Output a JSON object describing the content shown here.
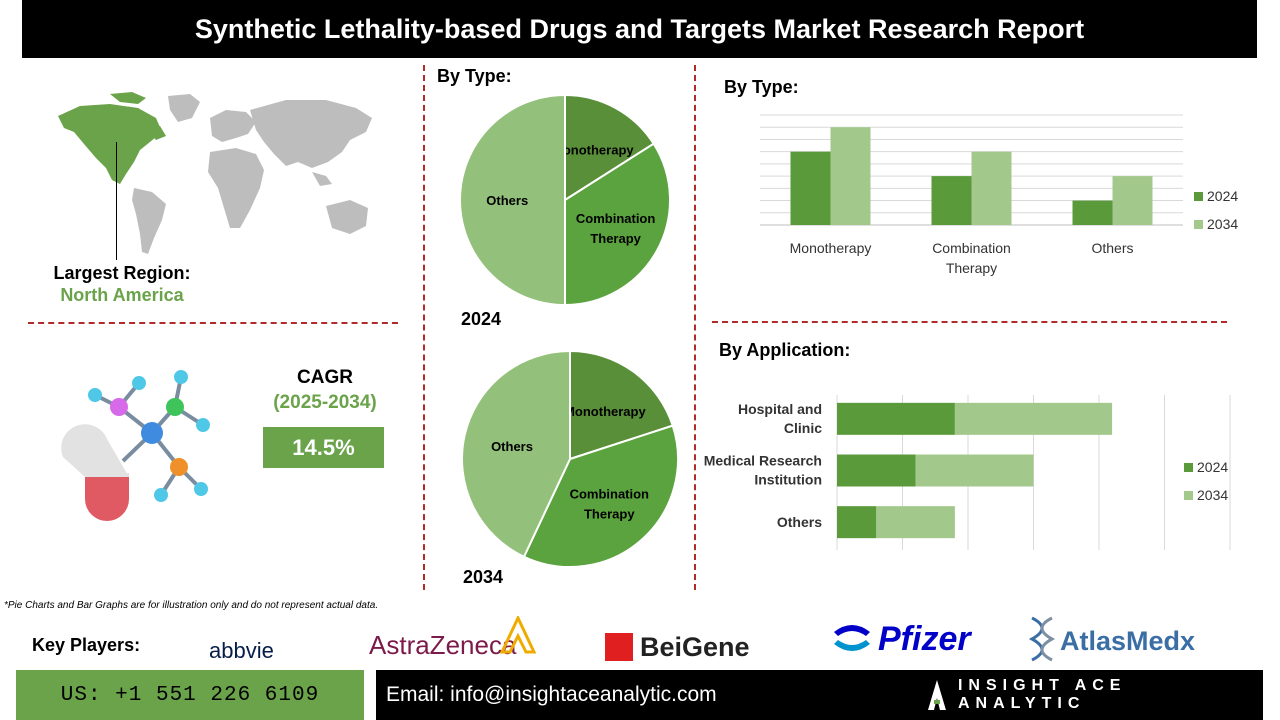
{
  "header": {
    "title": "Synthetic Lethality-based Drugs and Targets Market Research Report"
  },
  "region": {
    "label": "Largest Region:",
    "value": "North America"
  },
  "cagr": {
    "label": "CAGR",
    "period": "(2025-2034)",
    "value": "14.5%"
  },
  "pie_section": {
    "title": "By Type:"
  },
  "bar_type_section": {
    "title": "By  Type:"
  },
  "bar_app_section": {
    "title": "By Application:"
  },
  "footnote": "*Pie Charts and Bar Graphs are for illustration only and do not represent actual data.",
  "key_players": {
    "label": "Key Players:",
    "logos": [
      "abbvie",
      "AstraZeneca",
      "BeiGene",
      "Pfizer",
      "AtlasMedx"
    ]
  },
  "contact": {
    "phone": "US: +1 551 226 6109",
    "email": "Email: info@insightaceanalytic.com",
    "brand": "INSIGHT ACE ANALYTIC"
  },
  "colors": {
    "dark_green": "#5a9a3a",
    "mid_green": "#6aa34a",
    "light_green": "#a3c88c",
    "pie_light": "#93c07a",
    "dash_red": "#b22a2a"
  },
  "icons": [
    "world-map-icon",
    "molecule-capsule-icon",
    "brand-logo-icon"
  ],
  "chart_data": [
    {
      "type": "pie",
      "year_label": "2024",
      "slices": [
        {
          "label": "Monotherapy",
          "value": 16
        },
        {
          "label": "Combination Therapy",
          "value": 34
        },
        {
          "label": "Others",
          "value": 50
        }
      ]
    },
    {
      "type": "pie",
      "year_label": "2034",
      "slices": [
        {
          "label": "Monotherapy",
          "value": 20
        },
        {
          "label": "Combination Therapy",
          "value": 37
        },
        {
          "label": "Others",
          "value": 43
        }
      ]
    },
    {
      "type": "bar",
      "categories": [
        "Monotherapy",
        "Combination Therapy",
        "Others"
      ],
      "series": [
        {
          "name": "2024",
          "values": [
            3,
            2,
            1
          ]
        },
        {
          "name": "2034",
          "values": [
            4,
            3,
            2
          ]
        }
      ],
      "ylim": [
        0,
        4.5
      ],
      "grid": true,
      "legend": "right"
    },
    {
      "type": "bar",
      "orientation": "horizontal",
      "stacked": true,
      "categories": [
        "Hospital and Clinic",
        "Medical Research Institution",
        "Others"
      ],
      "series": [
        {
          "name": "2024",
          "values": [
            3,
            2,
            1
          ]
        },
        {
          "name": "2034",
          "values": [
            4,
            3,
            2
          ]
        }
      ],
      "xlim": [
        0,
        10
      ],
      "grid": true,
      "legend": "right"
    }
  ]
}
